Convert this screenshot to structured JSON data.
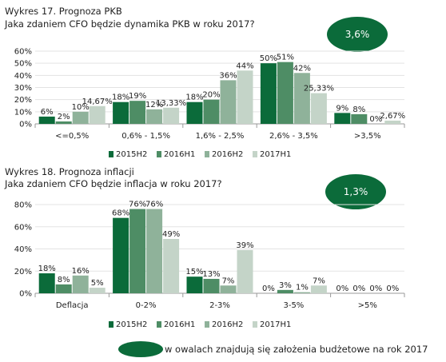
{
  "chart_data": [
    {
      "type": "bar",
      "title": "Wykres 17. Prognoza PKB",
      "subtitle": "Jaka zdaniem CFO będzie dynamika PKB w roku 2017?",
      "highlight": "3,6%",
      "categories": [
        "<=0,5%",
        "0,6% - 1,5%",
        "1,6% - 2,5%",
        "2,6% - 3,5%",
        ">3,5%"
      ],
      "yticks": [
        "0%",
        "10%",
        "20%",
        "30%",
        "40%",
        "50%",
        "60%"
      ],
      "ylim": [
        0,
        60
      ],
      "series": [
        {
          "name": "2015H2",
          "values": [
            6,
            18,
            18,
            50,
            9
          ],
          "labels": [
            "6%",
            "18%",
            "18%",
            "50%",
            "9%"
          ]
        },
        {
          "name": "2016H1",
          "values": [
            2,
            19,
            20,
            51,
            8
          ],
          "labels": [
            "2%",
            "19%",
            "20%",
            "51%",
            "8%"
          ]
        },
        {
          "name": "2016H2",
          "values": [
            10,
            12,
            36,
            42,
            0
          ],
          "labels": [
            "10%",
            "12%",
            "36%",
            "42%",
            "0%"
          ]
        },
        {
          "name": "2017H1",
          "values": [
            14.67,
            13.33,
            44,
            25.33,
            2.67
          ],
          "labels": [
            "14,67%",
            "13,33%",
            "44%",
            "25,33%",
            "2,67%"
          ]
        }
      ],
      "grid": true,
      "legend": "bottom"
    },
    {
      "type": "bar",
      "title": "Wykres 18. Prognoza inflacji",
      "subtitle": "Jaka zdaniem CFO będzie inflacja w roku 2017?",
      "highlight": "1,3%",
      "categories": [
        "Deflacja",
        "0-2%",
        "2-3%",
        "3-5%",
        ">5%"
      ],
      "yticks": [
        "0%",
        "20%",
        "40%",
        "60%",
        "80%"
      ],
      "ylim": [
        0,
        80
      ],
      "series": [
        {
          "name": "2015H2",
          "values": [
            18,
            68,
            15,
            0,
            0
          ],
          "labels": [
            "18%",
            "68%",
            "15%",
            "0%",
            "0%"
          ]
        },
        {
          "name": "2016H1",
          "values": [
            8,
            76,
            13,
            3,
            0
          ],
          "labels": [
            "8%",
            "76%",
            "13%",
            "3%",
            "0%"
          ]
        },
        {
          "name": "2016H2",
          "values": [
            16,
            76,
            7,
            1,
            0
          ],
          "labels": [
            "16%",
            "76%",
            "7%",
            "1%",
            "0%"
          ]
        },
        {
          "name": "2017H1",
          "values": [
            5,
            49,
            39,
            7,
            0
          ],
          "labels": [
            "5%",
            "49%",
            "39%",
            "7%",
            "0%"
          ]
        }
      ],
      "grid": true,
      "legend": "bottom"
    }
  ],
  "colors": {
    "2015H2": "#0b6b3a",
    "2016H1": "#4e8d65",
    "2016H2": "#8fb29a",
    "2017H1": "#c4d4c8",
    "oval": "#0b6b3a"
  },
  "footnote": "w owalach znajdują się założenia budżetowe na rok 2017"
}
